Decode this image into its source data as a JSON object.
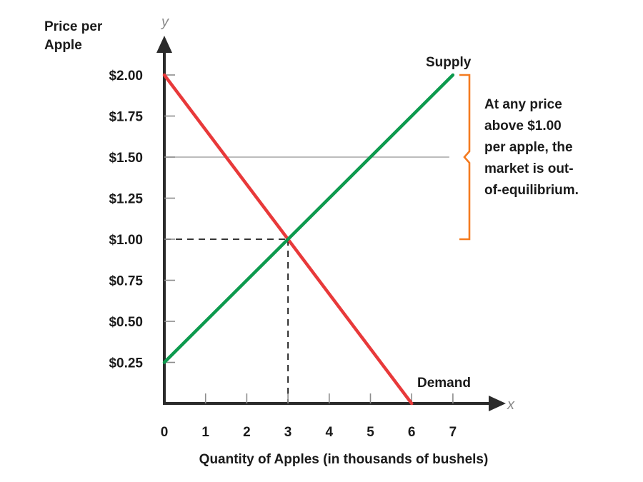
{
  "chart_data": {
    "type": "line",
    "ylabel_lines": [
      "Price per",
      "Apple"
    ],
    "xlabel": "Quantity of Apples (in thousands of bushels)",
    "x_axis_letter": "x",
    "y_axis_letter": "y",
    "xlim": [
      0,
      7
    ],
    "ylim": [
      0,
      2.0
    ],
    "x_ticks": [
      {
        "value": 0,
        "label": "0"
      },
      {
        "value": 1,
        "label": "1"
      },
      {
        "value": 2,
        "label": "2"
      },
      {
        "value": 3,
        "label": "3"
      },
      {
        "value": 4,
        "label": "4"
      },
      {
        "value": 5,
        "label": "5"
      },
      {
        "value": 6,
        "label": "6"
      },
      {
        "value": 7,
        "label": "7"
      }
    ],
    "y_ticks": [
      {
        "value": 0.25,
        "label": "$0.25"
      },
      {
        "value": 0.5,
        "label": "$0.50"
      },
      {
        "value": 0.75,
        "label": "$0.75"
      },
      {
        "value": 1.0,
        "label": "$1.00"
      },
      {
        "value": 1.25,
        "label": "$1.25"
      },
      {
        "value": 1.5,
        "label": "$1.50"
      },
      {
        "value": 1.75,
        "label": "$1.75"
      },
      {
        "value": 2.0,
        "label": "$2.00"
      }
    ],
    "series": [
      {
        "name": "Demand",
        "color": "#e8393a",
        "points": [
          [
            0,
            2.0
          ],
          [
            6,
            0.0
          ]
        ]
      },
      {
        "name": "Supply",
        "color": "#0d9a4e",
        "points": [
          [
            0,
            0.25
          ],
          [
            7,
            2.0
          ]
        ]
      }
    ],
    "equilibrium": {
      "x": 3,
      "y": 1.0
    },
    "reference_line": {
      "y": 1.5,
      "x_end": 7,
      "color": "#a6a6a6"
    },
    "bracket": {
      "y_from": 1.0,
      "y_to": 2.0,
      "color": "#f47b20"
    },
    "annotation_lines": [
      "At any price",
      "above $1.00",
      "per apple, the",
      "market is out-",
      "of-equilibrium."
    ]
  }
}
